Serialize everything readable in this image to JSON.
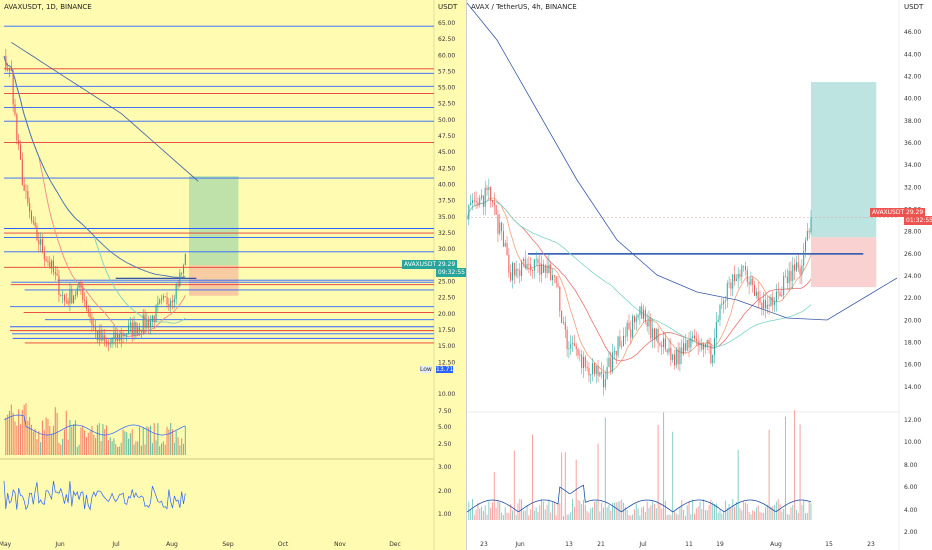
{
  "left_chart": {
    "title": "AVAXUSDT, 1D, BINANCE",
    "axis_unit": "USDT",
    "current_symbol": "AVAXUSDT",
    "current_price": "29.29",
    "countdown": "09:32:55",
    "low_label": "Low",
    "low_value": "13.71",
    "price_ticks": [
      "65.00",
      "62.50",
      "60.00",
      "57.50",
      "55.00",
      "52.50",
      "50.00",
      "47.50",
      "45.00",
      "42.50",
      "40.00",
      "37.50",
      "35.00",
      "32.50",
      "30.00",
      "27.50",
      "25.00",
      "22.50",
      "20.00",
      "17.50",
      "15.00",
      "12.50"
    ],
    "volume_ticks": [
      "10.00",
      "7.50",
      "5.00",
      "2.50"
    ],
    "indicator_ticks": [
      "3.00",
      "2.00",
      "1.00"
    ],
    "time_labels": [
      "May",
      "Jun",
      "Jul",
      "Aug",
      "Sep",
      "Oct",
      "Nov",
      "Dec"
    ],
    "colors": {
      "background": "#fffbb0",
      "up": "#26a69a",
      "down": "#ef5350",
      "line_blue": "#2962ff",
      "line_red": "#e53935",
      "target_zone": "#b7dfa8",
      "stop_zone": "#f7c7a2"
    }
  },
  "right_chart": {
    "title": "AVAX / TetherUS, 4h, BINANCE",
    "axis_unit": "USDT",
    "current_symbol": "AVAXUSDT",
    "current_price": "29.29",
    "countdown": "01:32:55",
    "price_ticks": [
      "46.00",
      "44.00",
      "42.00",
      "40.00",
      "38.00",
      "36.00",
      "34.00",
      "32.00",
      "30.00",
      "28.00",
      "26.00",
      "24.00",
      "22.00",
      "20.00",
      "18.00",
      "16.00",
      "14.00"
    ],
    "volume_ticks": [
      "12.00",
      "10.00",
      "8.00",
      "6.00",
      "4.00",
      "2.00"
    ],
    "time_labels": [
      "23",
      "Jun",
      "13",
      "21",
      "Jul",
      "11",
      "19",
      "Aug",
      "15",
      "23"
    ],
    "colors": {
      "up": "#26a69a",
      "down": "#ef5350",
      "resistance": "#1e4fa8",
      "target_zone": "#b2dfdb",
      "stop_zone": "#f8c9c9"
    }
  },
  "chart_data": [
    {
      "type": "candlestick",
      "title": "AVAXUSDT, 1D, BINANCE",
      "ylabel": "USDT",
      "x_labels": [
        "May",
        "Jun",
        "Jul",
        "Aug",
        "Sep",
        "Oct",
        "Nov",
        "Dec"
      ],
      "ylim": [
        11,
        67
      ],
      "price_path": [
        {
          "date": "2021-05-01",
          "price": 59
        },
        {
          "date": "2021-05-05",
          "price": 57
        },
        {
          "date": "2021-05-08",
          "price": 47
        },
        {
          "date": "2021-05-12",
          "price": 39
        },
        {
          "date": "2021-05-17",
          "price": 33
        },
        {
          "date": "2021-05-22",
          "price": 30
        },
        {
          "date": "2021-05-27",
          "price": 27
        },
        {
          "date": "2021-06-03",
          "price": 22
        },
        {
          "date": "2021-06-12",
          "price": 24
        },
        {
          "date": "2021-06-20",
          "price": 17
        },
        {
          "date": "2021-06-26",
          "price": 15
        },
        {
          "date": "2021-07-05",
          "price": 17
        },
        {
          "date": "2021-07-12",
          "price": 18
        },
        {
          "date": "2021-07-20",
          "price": 19
        },
        {
          "date": "2021-07-25",
          "price": 21
        },
        {
          "date": "2021-08-01",
          "price": 23
        },
        {
          "date": "2021-08-07",
          "price": 27
        },
        {
          "date": "2021-08-08",
          "price": 29.29
        }
      ],
      "horizontal_levels": [
        64.5,
        57.9,
        57.2,
        55.2,
        54.1,
        51.9,
        49.8,
        46.5,
        41.0,
        33.2,
        32.5,
        31.8,
        29.6,
        27.2,
        25.2,
        24.9,
        24.5,
        23.7,
        21.1,
        20.2,
        19.1,
        18.0,
        17.4,
        16.9,
        16.2,
        15.5
      ],
      "position": {
        "entry": 27.5,
        "target": 41.3,
        "stop": 22.8
      }
    },
    {
      "type": "candlestick",
      "title": "AVAX / TetherUS, 4h, BINANCE",
      "ylabel": "USDT",
      "x_labels": [
        "23",
        "Jun",
        "13",
        "21",
        "Jul",
        "11",
        "19",
        "Aug",
        "15",
        "23"
      ],
      "ylim": [
        13,
        48
      ],
      "price_path": [
        {
          "date": "2021-05-23",
          "price": 30
        },
        {
          "date": "2021-05-26",
          "price": 31.5
        },
        {
          "date": "2021-05-31",
          "price": 24.5
        },
        {
          "date": "2021-06-05",
          "price": 25
        },
        {
          "date": "2021-06-10",
          "price": 24
        },
        {
          "date": "2021-06-13",
          "price": 18
        },
        {
          "date": "2021-06-17",
          "price": 16
        },
        {
          "date": "2021-06-21",
          "price": 14.5
        },
        {
          "date": "2021-06-25",
          "price": 18
        },
        {
          "date": "2021-06-30",
          "price": 20.5
        },
        {
          "date": "2021-07-04",
          "price": 18
        },
        {
          "date": "2021-07-08",
          "price": 16.5
        },
        {
          "date": "2021-07-12",
          "price": 19
        },
        {
          "date": "2021-07-16",
          "price": 17
        },
        {
          "date": "2021-07-19",
          "price": 22
        },
        {
          "date": "2021-07-23",
          "price": 25
        },
        {
          "date": "2021-07-29",
          "price": 21
        },
        {
          "date": "2021-08-03",
          "price": 24
        },
        {
          "date": "2021-08-06",
          "price": 25
        },
        {
          "date": "2021-08-08",
          "price": 29.29
        }
      ],
      "horizontal_levels": [
        26.0
      ],
      "position": {
        "entry": 27.5,
        "target": 41.5,
        "stop": 23.0
      }
    }
  ]
}
